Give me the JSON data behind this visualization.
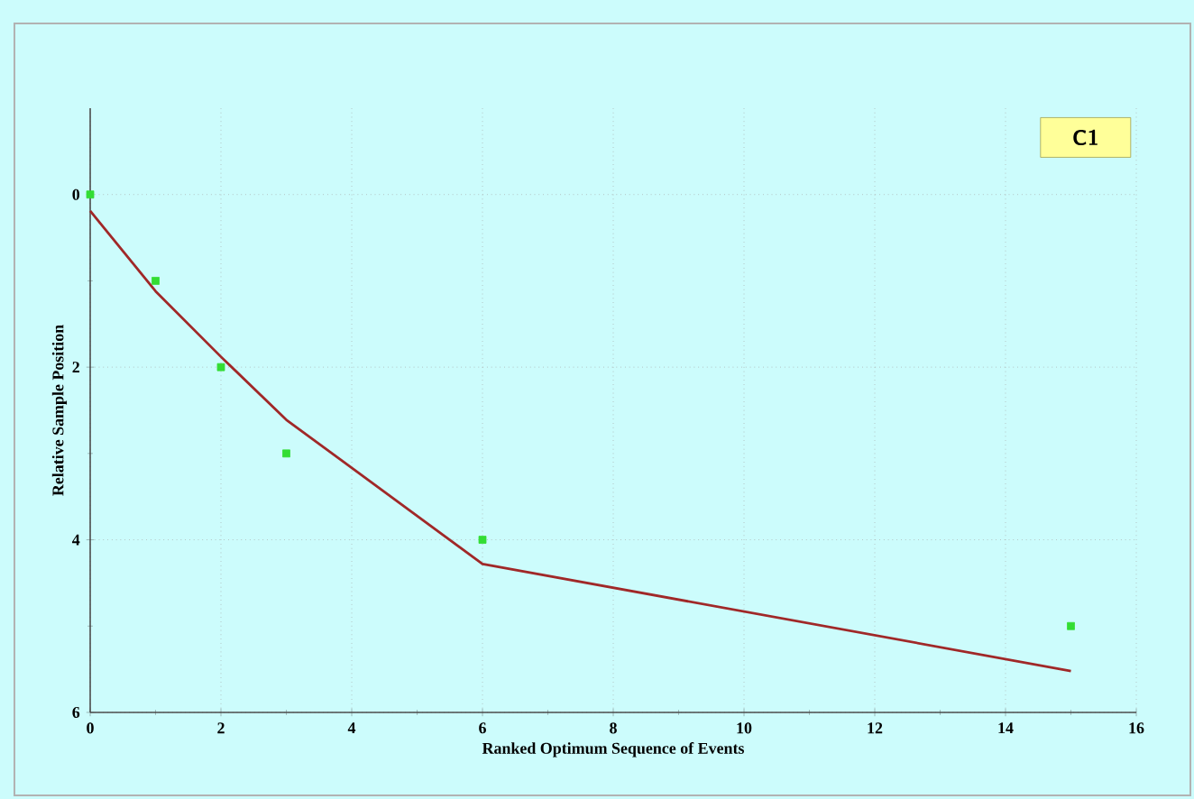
{
  "chart_data": {
    "type": "scatter",
    "xlabel": "Ranked Optimum Sequence of Events",
    "ylabel": "Relative Sample Position",
    "annotations": [
      "C1"
    ],
    "xlim": [
      0,
      16
    ],
    "xticks": [
      0,
      2,
      4,
      6,
      8,
      10,
      12,
      14,
      16
    ],
    "ylim": [
      6,
      -1
    ],
    "yticks": [
      0,
      2,
      4,
      6
    ],
    "grid": true,
    "series": [
      {
        "color": "#33dd33",
        "marker": "square",
        "x": [
          0,
          1,
          2,
          3,
          6,
          15
        ],
        "values": [
          0,
          1,
          2,
          3,
          4,
          5
        ]
      },
      {
        "type": "line",
        "color": "#a02828",
        "x": [
          0,
          1,
          2,
          3,
          6,
          15
        ],
        "values": [
          0.19,
          1.12,
          1.88,
          2.61,
          4.28,
          5.52
        ]
      }
    ]
  }
}
